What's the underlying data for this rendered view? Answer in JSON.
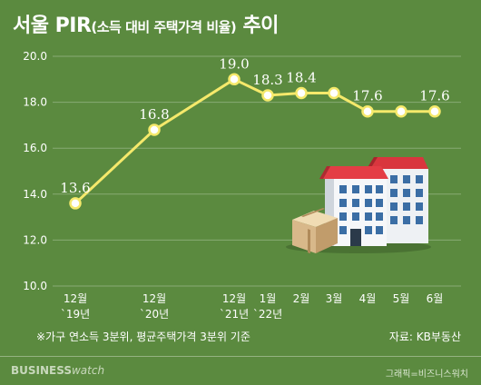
{
  "title": {
    "main_start": "서울 PIR",
    "paren": "(소득 대비 주택가격 비율)",
    "main_end": " 추이"
  },
  "note": "※가구 연소득 3분위, 평균주택가격 3분위 기준",
  "source": "자료: KB부동산",
  "footer": {
    "logo_strong": "BUSINESS",
    "logo_light": "watch",
    "credit": "그래픽=비즈니스워치"
  },
  "colors": {
    "background": "#5b8a3f",
    "line": "#f5e96b",
    "marker_fill": "#ffffff",
    "text": "#ffffff"
  },
  "chart_data": {
    "type": "line",
    "categories": [
      [
        "12월",
        "`19년"
      ],
      [
        "12월",
        "`20년"
      ],
      [
        "12월",
        "`21년"
      ],
      [
        "1월",
        "`22년"
      ],
      [
        "2월",
        ""
      ],
      [
        "3월",
        ""
      ],
      [
        "4월",
        ""
      ],
      [
        "5월",
        ""
      ],
      [
        "6월",
        ""
      ]
    ],
    "series": [
      {
        "values": [
          13.6,
          16.8,
          19.0,
          18.3,
          18.4,
          18.4,
          17.6,
          17.6,
          17.6
        ],
        "labels": [
          "13.6",
          "16.8",
          "19.0",
          "18.3",
          "18.4",
          "",
          "17.6",
          "",
          "17.6"
        ]
      }
    ],
    "yticks": [
      "10.0",
      "12.0",
      "14.0",
      "16.0",
      "18.0",
      "20.0"
    ],
    "ylim": [
      10,
      20
    ],
    "grid": true,
    "xlabel": "",
    "ylabel": ""
  }
}
